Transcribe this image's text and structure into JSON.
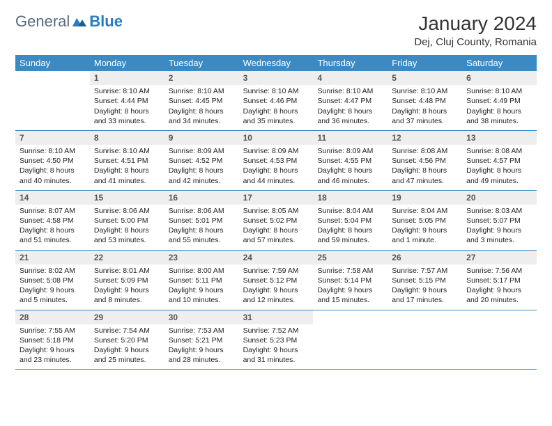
{
  "logo": {
    "text_gray": "General",
    "text_blue": "Blue"
  },
  "title": "January 2024",
  "location": "Dej, Cluj County, Romania",
  "colors": {
    "header_bg": "#3b8ac4",
    "header_text": "#ffffff",
    "daynum_bg": "#eeeeee",
    "daynum_text": "#555555",
    "body_text": "#222222",
    "rule": "#3b8ac4",
    "logo_gray": "#5a6a7a",
    "logo_blue": "#2a7bbf"
  },
  "day_names": [
    "Sunday",
    "Monday",
    "Tuesday",
    "Wednesday",
    "Thursday",
    "Friday",
    "Saturday"
  ],
  "weeks": [
    [
      {
        "n": "",
        "sunrise": "",
        "sunset": "",
        "daylight": ""
      },
      {
        "n": "1",
        "sunrise": "Sunrise: 8:10 AM",
        "sunset": "Sunset: 4:44 PM",
        "daylight": "Daylight: 8 hours and 33 minutes."
      },
      {
        "n": "2",
        "sunrise": "Sunrise: 8:10 AM",
        "sunset": "Sunset: 4:45 PM",
        "daylight": "Daylight: 8 hours and 34 minutes."
      },
      {
        "n": "3",
        "sunrise": "Sunrise: 8:10 AM",
        "sunset": "Sunset: 4:46 PM",
        "daylight": "Daylight: 8 hours and 35 minutes."
      },
      {
        "n": "4",
        "sunrise": "Sunrise: 8:10 AM",
        "sunset": "Sunset: 4:47 PM",
        "daylight": "Daylight: 8 hours and 36 minutes."
      },
      {
        "n": "5",
        "sunrise": "Sunrise: 8:10 AM",
        "sunset": "Sunset: 4:48 PM",
        "daylight": "Daylight: 8 hours and 37 minutes."
      },
      {
        "n": "6",
        "sunrise": "Sunrise: 8:10 AM",
        "sunset": "Sunset: 4:49 PM",
        "daylight": "Daylight: 8 hours and 38 minutes."
      }
    ],
    [
      {
        "n": "7",
        "sunrise": "Sunrise: 8:10 AM",
        "sunset": "Sunset: 4:50 PM",
        "daylight": "Daylight: 8 hours and 40 minutes."
      },
      {
        "n": "8",
        "sunrise": "Sunrise: 8:10 AM",
        "sunset": "Sunset: 4:51 PM",
        "daylight": "Daylight: 8 hours and 41 minutes."
      },
      {
        "n": "9",
        "sunrise": "Sunrise: 8:09 AM",
        "sunset": "Sunset: 4:52 PM",
        "daylight": "Daylight: 8 hours and 42 minutes."
      },
      {
        "n": "10",
        "sunrise": "Sunrise: 8:09 AM",
        "sunset": "Sunset: 4:53 PM",
        "daylight": "Daylight: 8 hours and 44 minutes."
      },
      {
        "n": "11",
        "sunrise": "Sunrise: 8:09 AM",
        "sunset": "Sunset: 4:55 PM",
        "daylight": "Daylight: 8 hours and 46 minutes."
      },
      {
        "n": "12",
        "sunrise": "Sunrise: 8:08 AM",
        "sunset": "Sunset: 4:56 PM",
        "daylight": "Daylight: 8 hours and 47 minutes."
      },
      {
        "n": "13",
        "sunrise": "Sunrise: 8:08 AM",
        "sunset": "Sunset: 4:57 PM",
        "daylight": "Daylight: 8 hours and 49 minutes."
      }
    ],
    [
      {
        "n": "14",
        "sunrise": "Sunrise: 8:07 AM",
        "sunset": "Sunset: 4:58 PM",
        "daylight": "Daylight: 8 hours and 51 minutes."
      },
      {
        "n": "15",
        "sunrise": "Sunrise: 8:06 AM",
        "sunset": "Sunset: 5:00 PM",
        "daylight": "Daylight: 8 hours and 53 minutes."
      },
      {
        "n": "16",
        "sunrise": "Sunrise: 8:06 AM",
        "sunset": "Sunset: 5:01 PM",
        "daylight": "Daylight: 8 hours and 55 minutes."
      },
      {
        "n": "17",
        "sunrise": "Sunrise: 8:05 AM",
        "sunset": "Sunset: 5:02 PM",
        "daylight": "Daylight: 8 hours and 57 minutes."
      },
      {
        "n": "18",
        "sunrise": "Sunrise: 8:04 AM",
        "sunset": "Sunset: 5:04 PM",
        "daylight": "Daylight: 8 hours and 59 minutes."
      },
      {
        "n": "19",
        "sunrise": "Sunrise: 8:04 AM",
        "sunset": "Sunset: 5:05 PM",
        "daylight": "Daylight: 9 hours and 1 minute."
      },
      {
        "n": "20",
        "sunrise": "Sunrise: 8:03 AM",
        "sunset": "Sunset: 5:07 PM",
        "daylight": "Daylight: 9 hours and 3 minutes."
      }
    ],
    [
      {
        "n": "21",
        "sunrise": "Sunrise: 8:02 AM",
        "sunset": "Sunset: 5:08 PM",
        "daylight": "Daylight: 9 hours and 5 minutes."
      },
      {
        "n": "22",
        "sunrise": "Sunrise: 8:01 AM",
        "sunset": "Sunset: 5:09 PM",
        "daylight": "Daylight: 9 hours and 8 minutes."
      },
      {
        "n": "23",
        "sunrise": "Sunrise: 8:00 AM",
        "sunset": "Sunset: 5:11 PM",
        "daylight": "Daylight: 9 hours and 10 minutes."
      },
      {
        "n": "24",
        "sunrise": "Sunrise: 7:59 AM",
        "sunset": "Sunset: 5:12 PM",
        "daylight": "Daylight: 9 hours and 12 minutes."
      },
      {
        "n": "25",
        "sunrise": "Sunrise: 7:58 AM",
        "sunset": "Sunset: 5:14 PM",
        "daylight": "Daylight: 9 hours and 15 minutes."
      },
      {
        "n": "26",
        "sunrise": "Sunrise: 7:57 AM",
        "sunset": "Sunset: 5:15 PM",
        "daylight": "Daylight: 9 hours and 17 minutes."
      },
      {
        "n": "27",
        "sunrise": "Sunrise: 7:56 AM",
        "sunset": "Sunset: 5:17 PM",
        "daylight": "Daylight: 9 hours and 20 minutes."
      }
    ],
    [
      {
        "n": "28",
        "sunrise": "Sunrise: 7:55 AM",
        "sunset": "Sunset: 5:18 PM",
        "daylight": "Daylight: 9 hours and 23 minutes."
      },
      {
        "n": "29",
        "sunrise": "Sunrise: 7:54 AM",
        "sunset": "Sunset: 5:20 PM",
        "daylight": "Daylight: 9 hours and 25 minutes."
      },
      {
        "n": "30",
        "sunrise": "Sunrise: 7:53 AM",
        "sunset": "Sunset: 5:21 PM",
        "daylight": "Daylight: 9 hours and 28 minutes."
      },
      {
        "n": "31",
        "sunrise": "Sunrise: 7:52 AM",
        "sunset": "Sunset: 5:23 PM",
        "daylight": "Daylight: 9 hours and 31 minutes."
      },
      {
        "n": "",
        "sunrise": "",
        "sunset": "",
        "daylight": ""
      },
      {
        "n": "",
        "sunrise": "",
        "sunset": "",
        "daylight": ""
      },
      {
        "n": "",
        "sunrise": "",
        "sunset": "",
        "daylight": ""
      }
    ]
  ]
}
